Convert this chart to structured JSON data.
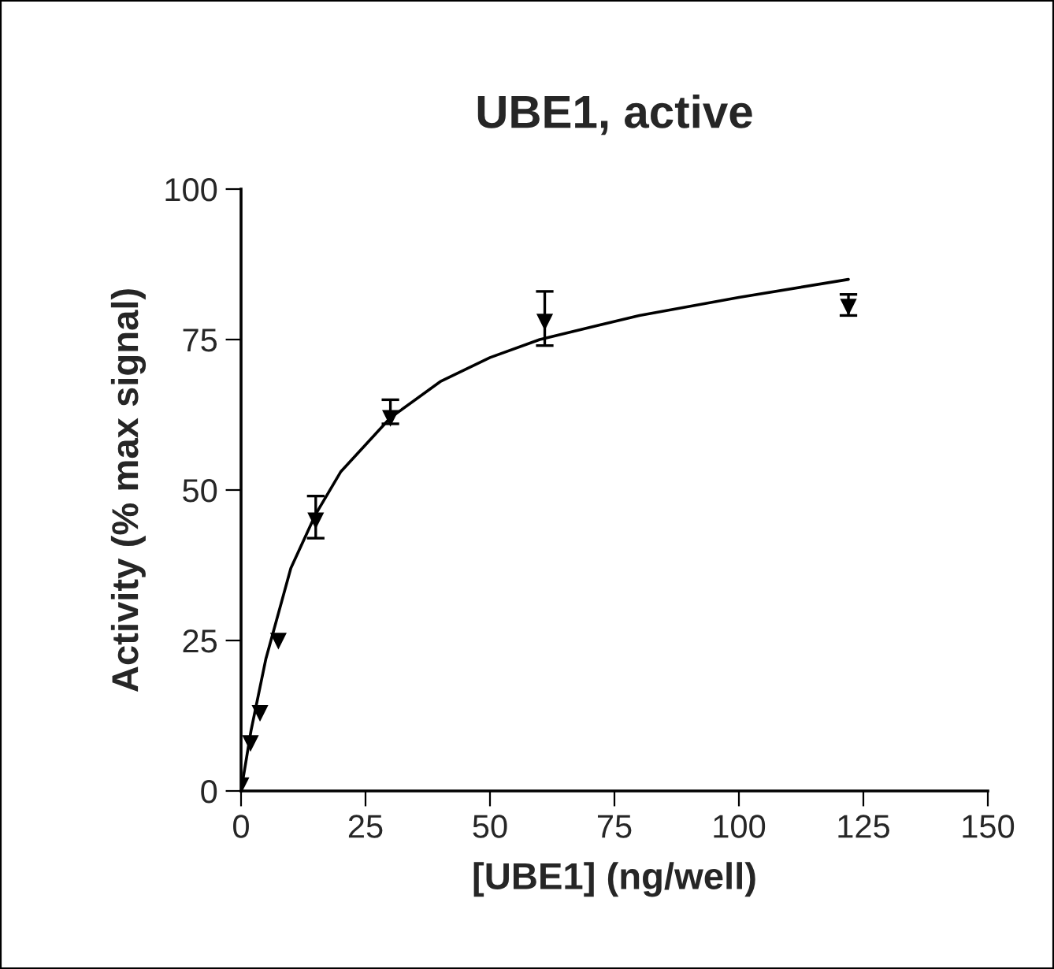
{
  "chart_data": {
    "type": "scatter",
    "title": "UBE1, active",
    "xlabel": "[UBE1] (ng/well)",
    "ylabel": "Activity (% max signal)",
    "xlim": [
      0,
      150
    ],
    "xticks": [
      0,
      25,
      50,
      75,
      100,
      125,
      150
    ],
    "ylim": [
      0,
      100
    ],
    "yticks": [
      0,
      25,
      50,
      75,
      100
    ],
    "grid": false,
    "marker": "triangle",
    "series": [
      {
        "color": "#000000",
        "x": [
          0,
          1.9,
          3.8,
          7.5,
          15,
          30,
          61,
          122
        ],
        "values": [
          1,
          8,
          13,
          25,
          45,
          62,
          78,
          80.5
        ],
        "errors": [
          null,
          null,
          null,
          null,
          [
            42,
            49
          ],
          [
            61,
            65
          ],
          [
            74,
            83
          ],
          [
            79,
            82.5
          ]
        ]
      },
      {
        "type": "line",
        "color": "#000000",
        "line_style": "solid",
        "marker": "none",
        "x": [
          0,
          2,
          5,
          10,
          15,
          20,
          30,
          40,
          50,
          60,
          80,
          100,
          122
        ],
        "values": [
          0,
          10,
          22,
          37,
          46,
          53,
          62,
          68,
          72,
          75,
          79,
          82,
          85
        ]
      }
    ]
  }
}
